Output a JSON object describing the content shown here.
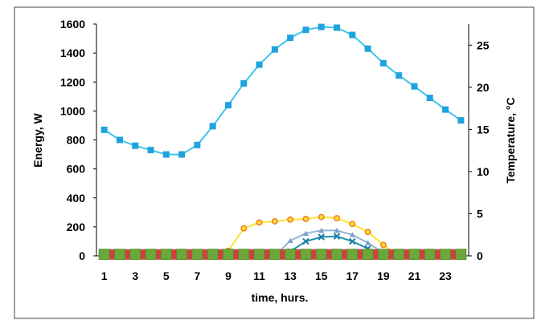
{
  "chart_data": {
    "type": "line",
    "xlabel": "time, hurs.",
    "ylabel_left": "Energy, W",
    "ylabel_right": "Temperature, °C",
    "x": [
      1,
      2,
      3,
      4,
      5,
      6,
      7,
      8,
      9,
      10,
      11,
      12,
      13,
      14,
      15,
      16,
      17,
      18,
      19,
      20,
      21,
      22,
      23,
      24
    ],
    "x_tick_labels": [
      "1",
      "3",
      "5",
      "7",
      "9",
      "11",
      "13",
      "15",
      "17",
      "19",
      "21",
      "23"
    ],
    "x_tick_values": [
      1,
      3,
      5,
      7,
      9,
      11,
      13,
      15,
      17,
      19,
      21,
      23
    ],
    "ylim_left": [
      0,
      1600
    ],
    "y_ticks_left": [
      "0",
      "200",
      "400",
      "600",
      "800",
      "1000",
      "1200",
      "1400",
      "1600"
    ],
    "ylim_right": [
      0,
      27.5
    ],
    "y_ticks_right": [
      "0",
      "5",
      "10",
      "15",
      "20",
      "25"
    ],
    "grid": false,
    "legend": "none",
    "colors": {
      "curve": "#3fc4ec",
      "curve_marker": "#1fa3dd",
      "yellow": "#ffe12e",
      "yellow_marker": "#f07b2a",
      "light_blue": "#96b4d6",
      "light_blue_marker": "#7a9fcc",
      "teal": "#1e8fae",
      "teal_marker": "#1a7f9e",
      "baseline_red": "#d63d3d",
      "baseline_green": "#6ba839",
      "frame": "#000000"
    },
    "series": [
      {
        "axis": "left",
        "values": [
          870,
          800,
          760,
          730,
          700,
          700,
          765,
          895,
          1040,
          1190,
          1320,
          1425,
          1505,
          1560,
          1580,
          1575,
          1525,
          1430,
          1330,
          1245,
          1170,
          1090,
          1010,
          935
        ]
      },
      {
        "axis": "left",
        "values": [
          0,
          0,
          0,
          0,
          0,
          0,
          0,
          0,
          35,
          190,
          230,
          238,
          250,
          255,
          268,
          260,
          220,
          165,
          75,
          0,
          0,
          0,
          0,
          0
        ]
      },
      {
        "axis": "left",
        "values": [
          0,
          0,
          0,
          0,
          0,
          0,
          0,
          0,
          0,
          0,
          0,
          0,
          105,
          155,
          175,
          175,
          145,
          90,
          20,
          0,
          0,
          0,
          0,
          0
        ]
      },
      {
        "axis": "left",
        "values": [
          0,
          0,
          0,
          0,
          0,
          0,
          0,
          0,
          0,
          0,
          0,
          0,
          30,
          100,
          130,
          135,
          100,
          50,
          0,
          0,
          0,
          0,
          0,
          0
        ]
      },
      {
        "axis": "left",
        "values": [
          10,
          10,
          10,
          10,
          10,
          10,
          10,
          10,
          10,
          10,
          10,
          10,
          10,
          10,
          10,
          10,
          10,
          10,
          10,
          10,
          10,
          10,
          10,
          10
        ]
      }
    ]
  }
}
